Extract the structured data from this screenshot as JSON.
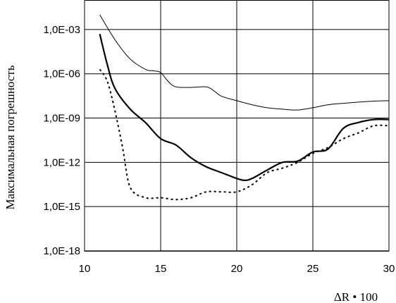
{
  "chart_data": {
    "type": "line",
    "xlabel": "ΔR • 100",
    "ylabel": "Максимальная  погрешность",
    "yscale": "log",
    "xlim": [
      10,
      30
    ],
    "ylim": [
      1e-18,
      0.1
    ],
    "grid": true,
    "x_ticks": [
      10,
      15,
      20,
      25,
      30
    ],
    "x_tick_labels": [
      "10",
      "15",
      "20",
      "25",
      "30"
    ],
    "y_ticks": [
      1e-18,
      1e-15,
      1e-12,
      1e-09,
      1e-06,
      0.001
    ],
    "y_tick_labels": [
      "1,0E-18",
      "1,0E-15",
      "1,0E-12",
      "1,0E-09",
      "1,0E-06",
      "1,0E-03"
    ],
    "series": [
      {
        "style": "thin-solid",
        "x": [
          11,
          12,
          13,
          14,
          14.5,
          15,
          15.5,
          16,
          17,
          18,
          18.5,
          19,
          20,
          21,
          22,
          23,
          24,
          25,
          26,
          27,
          28,
          29,
          30
        ],
        "y": [
          0.01,
          0.0002,
          1e-05,
          2e-06,
          1.6e-06,
          1.2e-06,
          3e-07,
          1.3e-07,
          1.2e-07,
          1.3e-07,
          7e-08,
          3e-08,
          1.5e-08,
          8e-09,
          5e-09,
          4e-09,
          3.5e-09,
          5e-09,
          8e-09,
          1e-08,
          1.2e-08,
          1.4e-08,
          1.5e-08
        ]
      },
      {
        "style": "thick-solid",
        "x": [
          11,
          11.5,
          12,
          13,
          14,
          15,
          16,
          17,
          18,
          19,
          20,
          20.5,
          21,
          22,
          23,
          24,
          25,
          26,
          27,
          28,
          29,
          30
        ],
        "y": [
          0.0005,
          4e-06,
          1e-07,
          4e-09,
          5e-10,
          4e-11,
          1.5e-11,
          2e-12,
          5e-13,
          2e-13,
          8e-14,
          6e-14,
          8e-14,
          3e-13,
          1e-12,
          1.2e-12,
          5e-12,
          8e-12,
          2e-10,
          5e-10,
          8e-10,
          8e-10
        ]
      },
      {
        "style": "dotted",
        "x": [
          11,
          11.5,
          12,
          12.5,
          13,
          14,
          15,
          16,
          17,
          18,
          19,
          20,
          21,
          22,
          23,
          24,
          25,
          26,
          27,
          28,
          29,
          30
        ],
        "y": [
          2e-06,
          3e-07,
          3e-09,
          1e-11,
          2e-14,
          4e-15,
          4e-15,
          3e-15,
          4e-15,
          1e-14,
          1e-14,
          1e-14,
          3e-14,
          2e-13,
          4e-13,
          1e-12,
          4e-12,
          1e-11,
          4e-11,
          1e-10,
          3e-10,
          3e-10
        ]
      }
    ]
  }
}
